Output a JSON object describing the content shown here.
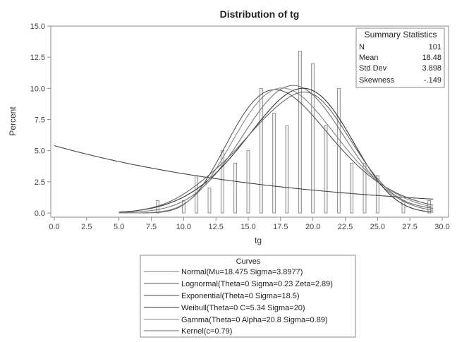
{
  "chart_data": {
    "type": "bar",
    "title": "Distribution of tg",
    "xlabel": "tg",
    "ylabel": "Percent",
    "xlim": [
      0,
      30
    ],
    "ylim": [
      0,
      15
    ],
    "x_ticks": [
      "0.0",
      "2.5",
      "5.0",
      "7.5",
      "10.0",
      "12.5",
      "15.0",
      "17.5",
      "20.0",
      "22.5",
      "25.0",
      "27.5",
      "30.0"
    ],
    "y_ticks": [
      "0.0",
      "2.5",
      "5.0",
      "7.5",
      "10.0",
      "12.5",
      "15.0"
    ],
    "bars": [
      {
        "x": 8,
        "y": 1
      },
      {
        "x": 10,
        "y": 1
      },
      {
        "x": 11,
        "y": 3
      },
      {
        "x": 12,
        "y": 2
      },
      {
        "x": 13,
        "y": 5
      },
      {
        "x": 14,
        "y": 4
      },
      {
        "x": 15,
        "y": 5
      },
      {
        "x": 16,
        "y": 10
      },
      {
        "x": 17,
        "y": 8
      },
      {
        "x": 18,
        "y": 7
      },
      {
        "x": 19,
        "y": 13
      },
      {
        "x": 20,
        "y": 12
      },
      {
        "x": 21,
        "y": 7
      },
      {
        "x": 22,
        "y": 10
      },
      {
        "x": 23,
        "y": 4
      },
      {
        "x": 24,
        "y": 4
      },
      {
        "x": 25,
        "y": 3
      },
      {
        "x": 27,
        "y": 1
      },
      {
        "x": 29,
        "y": 1
      }
    ],
    "summary": {
      "title": "Summary Statistics",
      "rows": [
        {
          "label": "N",
          "value": "101"
        },
        {
          "label": "Mean",
          "value": "18.48"
        },
        {
          "label": "Std Dev",
          "value": "3.898"
        },
        {
          "label": "Skewness",
          "value": "-.149"
        }
      ]
    },
    "legend": {
      "title": "Curves",
      "placement": "bottom",
      "entries": [
        "Normal(Mu=18.475 Sigma=3.8977)",
        "Lognormal(Theta=0 Sigma=0.23 Zeta=2.89)",
        "Exponential(Theta=0 Sigma=18.5)",
        "Weibull(Theta=0 C=5.34 Sigma=20)",
        "Gamma(Theta=0 Alpha=20.8 Sigma=0.89)",
        "Kernel(c=0.79)"
      ]
    },
    "curves": [
      {
        "kind": "normal",
        "mu": 18.475,
        "sigma": 3.8977,
        "color": "#777777"
      },
      {
        "kind": "lognormal",
        "theta": 0,
        "sigma": 0.23,
        "zeta": 2.89,
        "color": "#555555"
      },
      {
        "kind": "exponential",
        "theta": 0,
        "sigma": 18.5,
        "color": "#444444"
      },
      {
        "kind": "weibull",
        "theta": 0,
        "c": 5.34,
        "sigma": 20,
        "color": "#333333"
      },
      {
        "kind": "gamma",
        "theta": 0,
        "alpha": 20.8,
        "sigma": 0.89,
        "color": "#888888"
      },
      {
        "kind": "kernel",
        "c": 0.79,
        "color": "#666666"
      }
    ],
    "colors": {
      "bar_fill": "#f2f2f2",
      "bar_stroke": "#7a7a7a",
      "frame": "#8a8a8a"
    }
  }
}
